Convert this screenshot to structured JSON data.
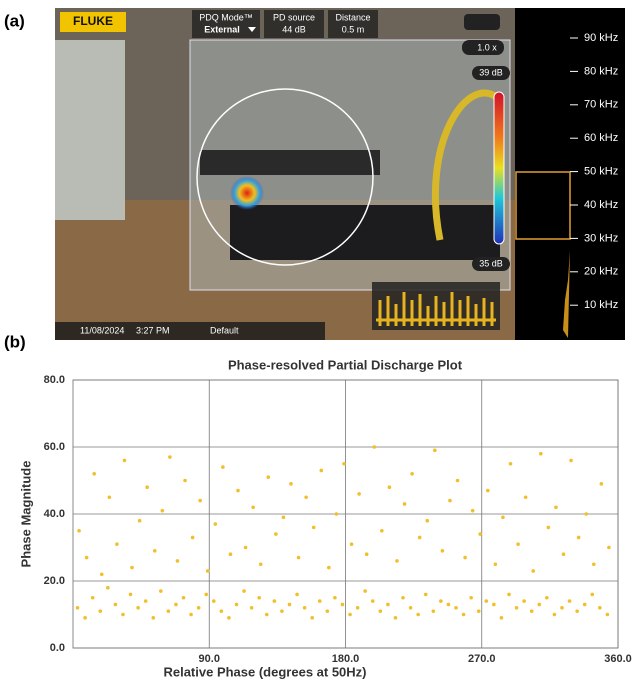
{
  "panel_a": {
    "label": "(a)",
    "brand": "FLUKE",
    "mode_title": "PDQ Mode™",
    "mode_value": "External",
    "source_title": "PD source",
    "source_value": "44 dB",
    "distance_title": "Distance",
    "distance_value": "0.5 m",
    "zoom": "1.0 x",
    "scale_top": "39 dB",
    "scale_bottom": "35 dB",
    "frequencies": [
      "90 kHz",
      "80 kHz",
      "70 kHz",
      "60 kHz",
      "50 kHz",
      "40 kHz",
      "30 kHz",
      "20 kHz",
      "10 kHz"
    ],
    "date": "11/08/2024",
    "time": "3:27 PM",
    "folder": "Default"
  },
  "panel_b": {
    "label": "(b)"
  },
  "chart_data": {
    "type": "scatter",
    "title": "Phase-resolved Partial Discharge Plot",
    "x_label": "Relative Phase (degrees at 50Hz)",
    "y_label": "Phase Magnitude",
    "color": "#f0bf2a",
    "grid": true,
    "xlim": [
      0,
      360
    ],
    "ylim": [
      0,
      80
    ],
    "xticks": [
      {
        "value": 90,
        "label": "90.0"
      },
      {
        "value": 180,
        "label": "180.0"
      },
      {
        "value": 270,
        "label": "270.0"
      },
      {
        "value": 360,
        "label": "360.0"
      }
    ],
    "yticks": [
      {
        "value": 0,
        "label": "0.0"
      },
      {
        "value": 20,
        "label": "20.0"
      },
      {
        "value": 40,
        "label": "40.0"
      },
      {
        "value": 60,
        "label": "60.0"
      },
      {
        "value": 80,
        "label": "80.0"
      }
    ],
    "x": [
      3,
      4,
      8,
      9,
      13,
      14,
      18,
      19,
      23,
      24,
      28,
      29,
      33,
      34,
      38,
      39,
      43,
      44,
      48,
      49,
      53,
      54,
      58,
      59,
      63,
      64,
      68,
      69,
      73,
      74,
      78,
      79,
      83,
      84,
      88,
      89,
      93,
      94,
      98,
      99,
      103,
      104,
      108,
      109,
      113,
      114,
      118,
      119,
      123,
      124,
      128,
      129,
      133,
      134,
      138,
      139,
      143,
      144,
      148,
      149,
      153,
      154,
      158,
      159,
      163,
      164,
      168,
      169,
      173,
      174,
      178,
      179,
      183,
      184,
      188,
      189,
      193,
      194,
      198,
      199,
      203,
      204,
      208,
      209,
      213,
      214,
      218,
      219,
      223,
      224,
      228,
      229,
      233,
      234,
      238,
      239,
      243,
      244,
      248,
      249,
      253,
      254,
      258,
      259,
      263,
      264,
      268,
      269,
      273,
      274,
      278,
      279,
      283,
      284,
      288,
      289,
      293,
      294,
      298,
      299,
      303,
      304,
      308,
      309,
      313,
      314,
      318,
      319,
      323,
      324,
      328,
      329,
      333,
      334,
      338,
      339,
      343,
      344,
      348,
      349,
      353,
      354
    ],
    "values": [
      12,
      35,
      9,
      27,
      15,
      52,
      11,
      22,
      18,
      45,
      13,
      31,
      10,
      56,
      16,
      24,
      12,
      38,
      14,
      48,
      9,
      29,
      17,
      41,
      11,
      57,
      13,
      26,
      15,
      50,
      10,
      33,
      12,
      44,
      16,
      23,
      14,
      37,
      11,
      54,
      9,
      28,
      13,
      47,
      17,
      30,
      12,
      42,
      15,
      25,
      10,
      51,
      14,
      34,
      11,
      39,
      13,
      49,
      16,
      27,
      12,
      45,
      9,
      36,
      14,
      53,
      11,
      24,
      15,
      40,
      13,
      55,
      10,
      31,
      12,
      46,
      17,
      28,
      14,
      60,
      11,
      35,
      13,
      48,
      9,
      26,
      15,
      43,
      12,
      52,
      10,
      33,
      16,
      38,
      11,
      59,
      14,
      29,
      13,
      44,
      12,
      50,
      10,
      27,
      15,
      41,
      11,
      34,
      14,
      47,
      13,
      25,
      9,
      39,
      16,
      55,
      12,
      31,
      14,
      45,
      11,
      23,
      13,
      58,
      15,
      36,
      10,
      42,
      12,
      28,
      14,
      56,
      11,
      33,
      13,
      40,
      16,
      25,
      12,
      49,
      10,
      30
    ]
  }
}
